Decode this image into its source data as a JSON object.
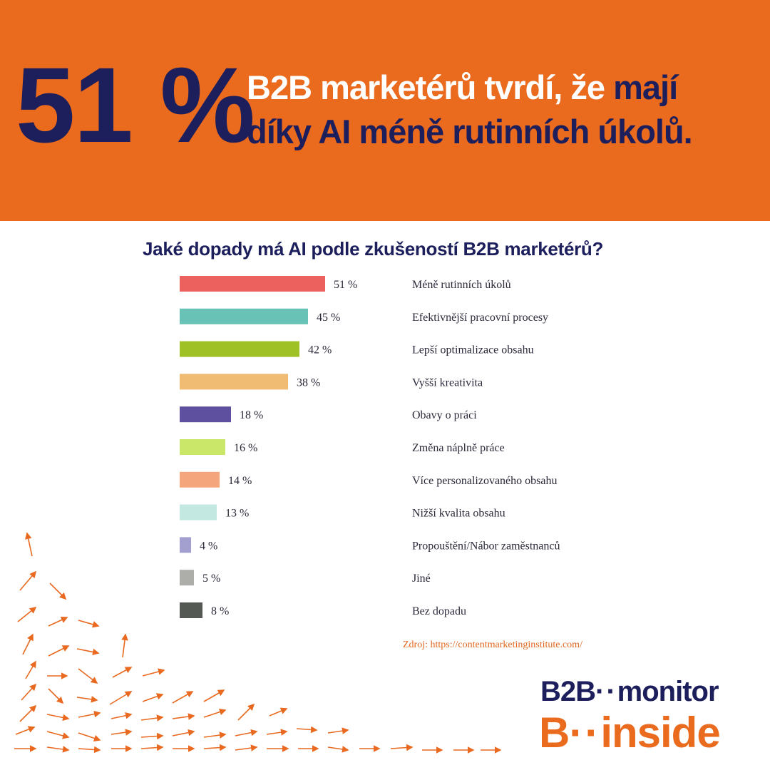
{
  "header": {
    "big_stat": "51 %",
    "headline_line1_white": "B2B marketérů tvrdí, že ",
    "headline_line1_dark": "mají",
    "headline_line2_dark": "díky AI méně rutinních úkolů."
  },
  "chart_data": {
    "type": "bar",
    "orientation": "horizontal",
    "title": "Jaké dopady má AI podle zkušeností B2B marketérů?",
    "xlim": [
      0,
      100
    ],
    "grid": false,
    "legend": "none",
    "categories": [
      "Méně rutinních úkolů",
      "Efektivnější pracovní procesy",
      "Lepší optimalizace obsahu",
      "Vyšší kreativita",
      "Obavy o práci",
      "Změna náplně práce",
      "Více personalizovaného obsahu",
      "Nižší kvalita obsahu",
      "Propouštění/Nábor zaměstnanců",
      "Jiné",
      "Bez dopadu"
    ],
    "values": [
      51,
      45,
      42,
      38,
      18,
      16,
      14,
      13,
      4,
      5,
      8
    ],
    "value_labels": [
      "51 %",
      "45 %",
      "42 %",
      "38 %",
      "18 %",
      "16 %",
      "14 %",
      "13 %",
      "4 %",
      "5 %",
      "8 %"
    ],
    "colors": [
      "#ec615d",
      "#68c2b6",
      "#a0c125",
      "#f0bb72",
      "#5f509f",
      "#cbe76a",
      "#f5a57c",
      "#c3e7e1",
      "#a39fcf",
      "#adadaa",
      "#555953"
    ]
  },
  "source": "Zdroj: https://contentmarketinginstitute.com/",
  "logo": {
    "line1_left": "B2B",
    "line1_dots": "··",
    "line1_right": "monitor",
    "line2_left": "B",
    "line2_dots": "··",
    "line2_right": "inside"
  },
  "colors": {
    "banner": "#ea6a1e",
    "dark_navy": "#1d1f5c",
    "arrows": "#e8691f"
  },
  "decoration_icon": "arrow-field-icon"
}
